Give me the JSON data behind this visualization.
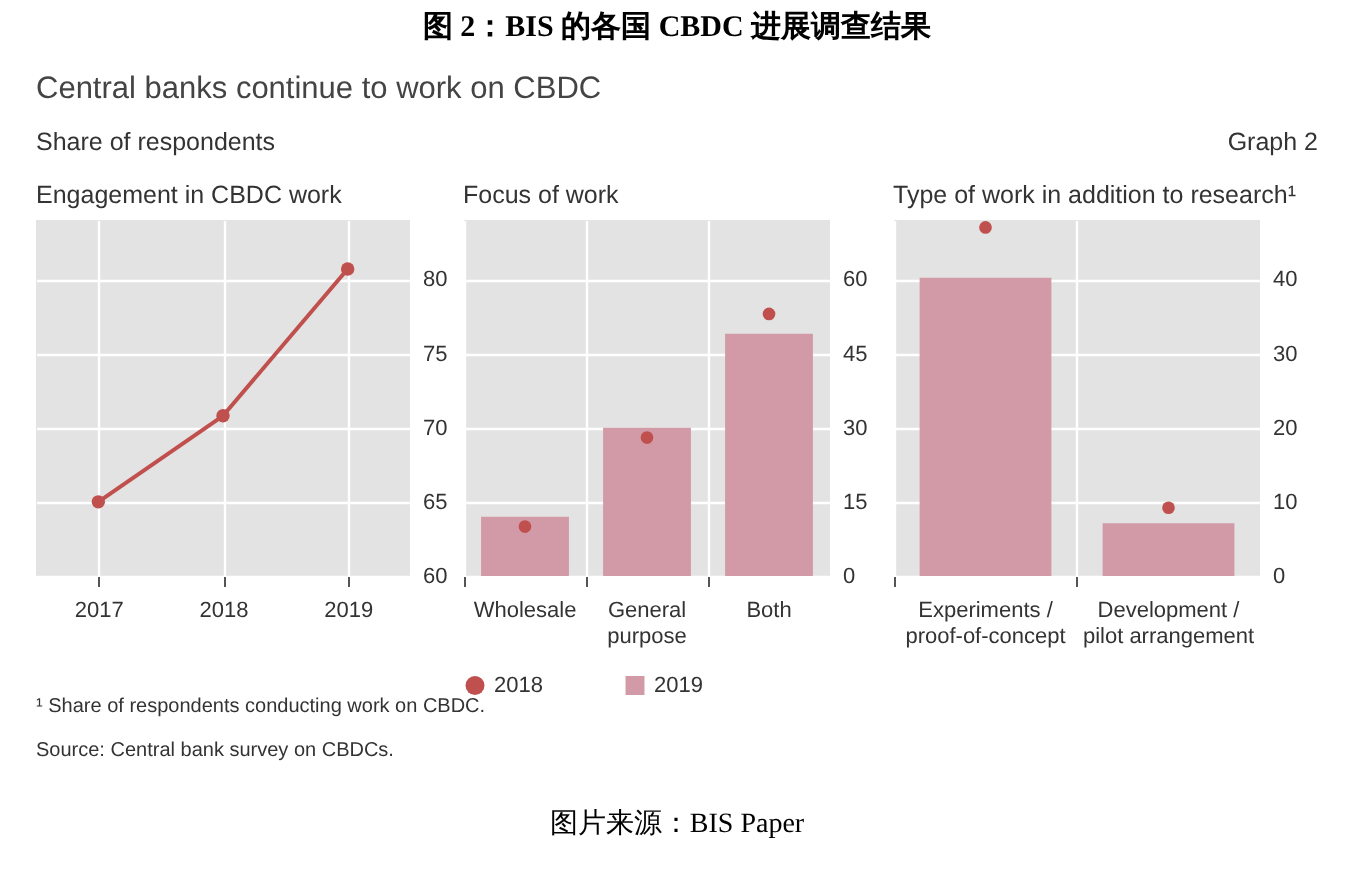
{
  "chart_data": [
    {
      "type": "other",
      "title": "图 2：BIS 的各国 CBDC 进展调查结果",
      "subtitle": "Central banks continue to work on CBDC",
      "annotations": [
        "Share of respondents",
        "Graph 2",
        "¹ Share of respondents conducting work on CBDC.",
        "Source: Central bank survey on CBDCs.",
        "图片来源：BIS Paper"
      ]
    },
    {
      "type": "line",
      "title": "Engagement in CBDC work",
      "categories": [
        "2017",
        "2018",
        "2019"
      ],
      "values": [
        65,
        70.8,
        80.7
      ],
      "color": "#c0504d",
      "marker": "circle",
      "ylim": [
        60,
        84
      ],
      "yticks": [
        60,
        65,
        70,
        75,
        80
      ],
      "grid": true
    },
    {
      "type": "bar",
      "title": "Focus of work",
      "categories": [
        "Wholesale",
        "General\npurpose",
        "Both"
      ],
      "series": [
        {
          "name": "2018",
          "type": "scatter",
          "color": "#c0504d",
          "values": [
            10,
            28,
            53
          ]
        },
        {
          "name": "2019",
          "type": "bar",
          "color": "#d19aa6",
          "values": [
            12,
            30,
            49
          ]
        }
      ],
      "ylim": [
        0,
        72
      ],
      "yticks": [
        0,
        15,
        30,
        45,
        60
      ],
      "grid": true,
      "legend": "bottom"
    },
    {
      "type": "bar",
      "title": "Type of work in addition to research¹",
      "categories": [
        "Experiments /\nproof-of-concept",
        "Development /\npilot arrangement"
      ],
      "series": [
        {
          "name": "2018",
          "type": "scatter",
          "color": "#c0504d",
          "values": [
            47,
            9.2
          ]
        },
        {
          "name": "2019",
          "type": "bar",
          "color": "#d19aa6",
          "values": [
            40.2,
            7.1
          ]
        }
      ],
      "ylim": [
        0,
        48
      ],
      "yticks": [
        0,
        10,
        20,
        30,
        40
      ],
      "grid": true
    }
  ]
}
